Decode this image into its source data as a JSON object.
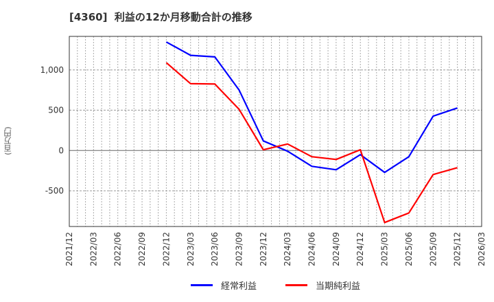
{
  "title": "[4360]  利益の12か月移動合計の推移",
  "y_unit_label": "(百万円)",
  "legend": [
    {
      "label": "経常利益",
      "color": "#0000ff"
    },
    {
      "label": "当期純利益",
      "color": "#ff0000"
    }
  ],
  "chart_data": {
    "type": "line",
    "title": "[4360]  利益の12か月移動合計の推移",
    "xlabel": "",
    "ylabel": "(百万円)",
    "x_ticks": [
      "2021/12",
      "2022/03",
      "2022/06",
      "2022/09",
      "2022/12",
      "2023/03",
      "2023/06",
      "2023/09",
      "2023/12",
      "2024/03",
      "2024/06",
      "2024/09",
      "2024/12",
      "2025/03",
      "2025/06",
      "2025/09",
      "2025/12",
      "2026/03"
    ],
    "y_ticks": [
      1000,
      500,
      0,
      -500
    ],
    "y_tick_labels": [
      "1,000",
      "500",
      "0",
      "-500"
    ],
    "ylim": [
      -943,
      1416
    ],
    "grid": true,
    "legend_position": "bottom",
    "categories": [
      "2022/12",
      "2023/03",
      "2023/06",
      "2023/09",
      "2023/12",
      "2024/03",
      "2024/06",
      "2024/09",
      "2024/12",
      "2025/03",
      "2025/06",
      "2025/09",
      "2025/12"
    ],
    "series": [
      {
        "name": "経常利益",
        "color": "#0000ff",
        "values": [
          1346,
          1181,
          1161,
          750,
          119,
          -9,
          -196,
          -239,
          -51,
          -272,
          -77,
          426,
          528
        ]
      },
      {
        "name": "当期純利益",
        "color": "#ff0000",
        "values": [
          1090,
          829,
          825,
          511,
          9,
          81,
          -77,
          -111,
          9,
          -894,
          -775,
          -298,
          -213
        ]
      }
    ]
  }
}
